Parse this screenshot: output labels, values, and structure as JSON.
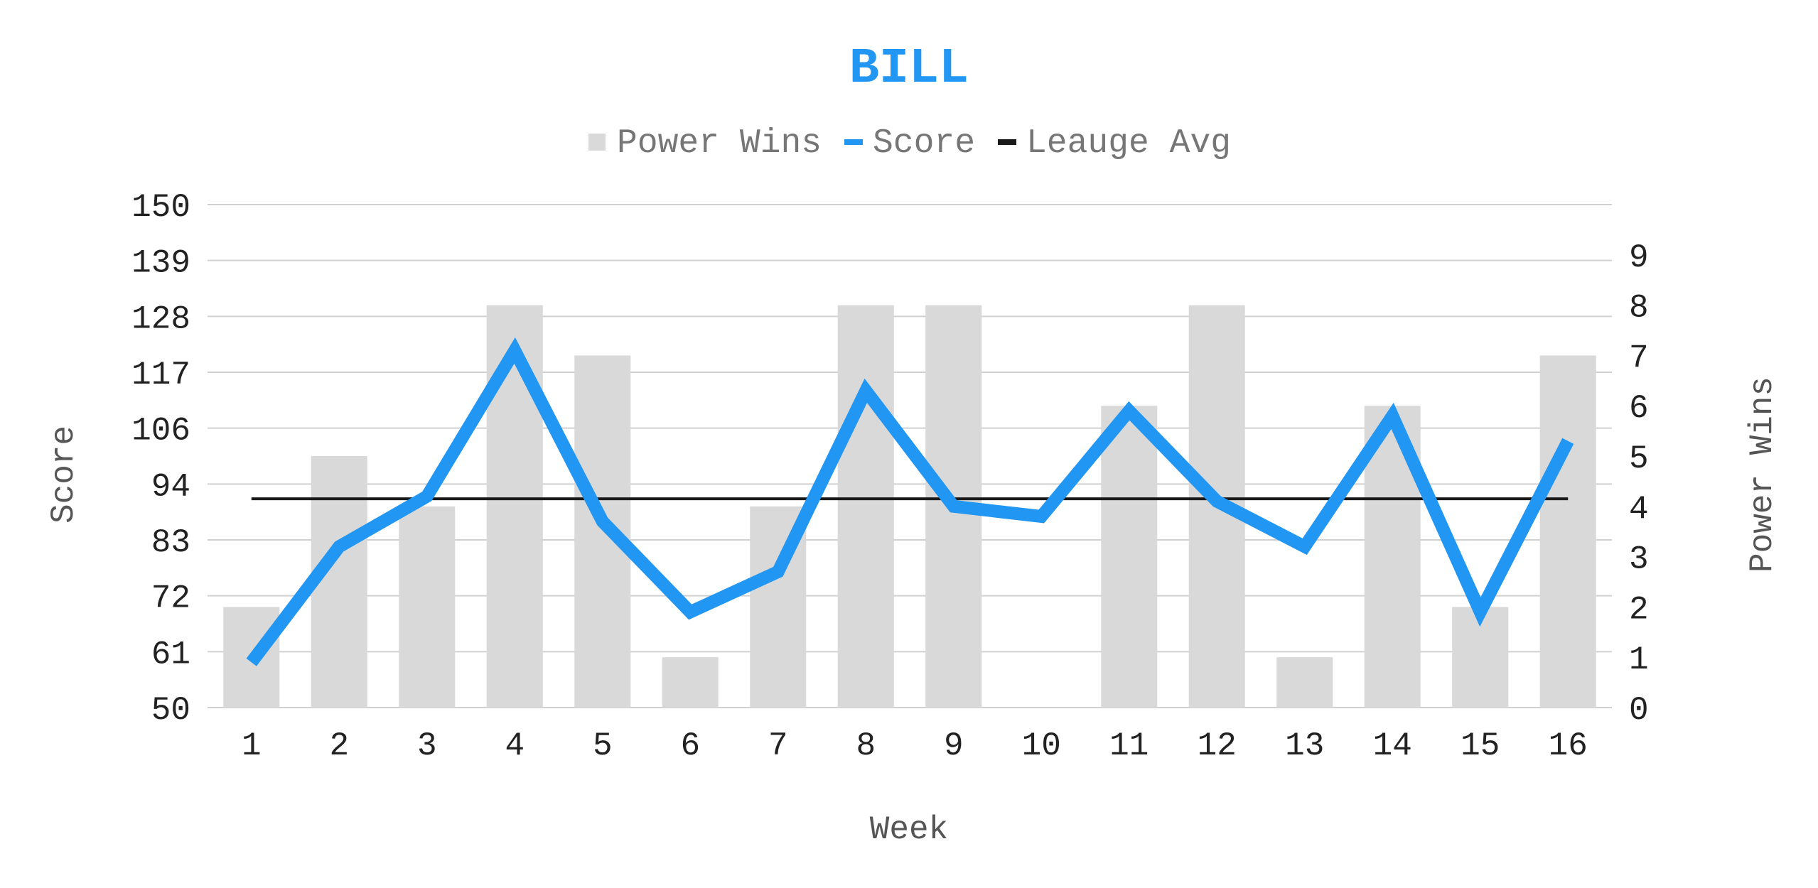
{
  "chart_data": {
    "type": "bar",
    "title": "BILL",
    "xlabel": "Week",
    "ylabel": "Score",
    "y2label": "Power Wins",
    "categories": [
      "1",
      "2",
      "3",
      "4",
      "5",
      "6",
      "7",
      "8",
      "9",
      "10",
      "11",
      "12",
      "13",
      "14",
      "15",
      "16"
    ],
    "ylim": [
      50,
      150
    ],
    "yticks": [
      "50",
      "61",
      "72",
      "83",
      "94",
      "106",
      "117",
      "128",
      "139",
      "150"
    ],
    "y2lim": [
      0,
      10
    ],
    "y2ticks": [
      "0",
      "1",
      "2",
      "3",
      "4",
      "5",
      "6",
      "7",
      "8",
      "9"
    ],
    "grid": true,
    "legend_position": "top-center",
    "series": [
      {
        "name": "Power Wins",
        "type": "bar",
        "axis": "secondary",
        "color": "#d9d9d9",
        "values": [
          2,
          5,
          4,
          8,
          7,
          1,
          4,
          8,
          8,
          0,
          6,
          8,
          1,
          6,
          2,
          7
        ]
      },
      {
        "name": "Score",
        "type": "line",
        "axis": "primary",
        "color": "#2196f3",
        "values": [
          59,
          82,
          92,
          121,
          87,
          69,
          77,
          113,
          90,
          88,
          109,
          91,
          82,
          108,
          69,
          103
        ]
      },
      {
        "name": "Leauge Avg",
        "type": "line",
        "axis": "primary",
        "color": "#1a1a1a",
        "values": [
          91.5,
          91.5,
          91.5,
          91.5,
          91.5,
          91.5,
          91.5,
          91.5,
          91.5,
          91.5,
          91.5,
          91.5,
          91.5,
          91.5,
          91.5,
          91.5
        ]
      }
    ]
  }
}
